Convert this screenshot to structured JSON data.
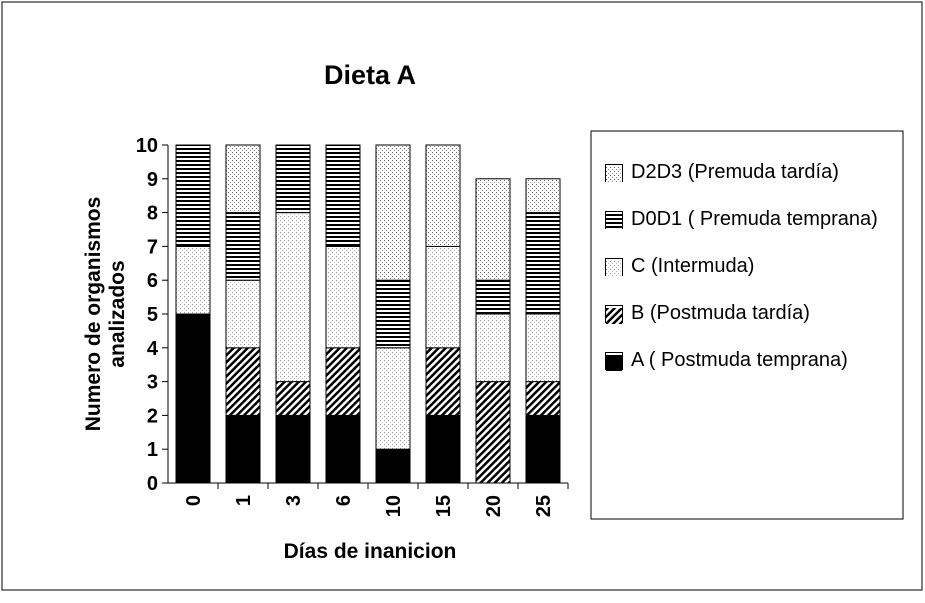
{
  "chart_data": {
    "type": "stacked_bar",
    "title": "Dieta A",
    "xlabel": "Días de inanicion",
    "ylabel": [
      "Numero de organismos",
      "analizados"
    ],
    "categories": [
      "0",
      "1",
      "3",
      "6",
      "10",
      "15",
      "20",
      "25"
    ],
    "series": [
      {
        "name": "A ( Postmuda temprana)",
        "color": "#000000",
        "pattern": "solid",
        "values": [
          5,
          2,
          2,
          2,
          1,
          2,
          0,
          2
        ]
      },
      {
        "name": "B (Postmuda tardía)",
        "color": "#000000",
        "pattern": "hatch",
        "values": [
          0,
          2,
          1,
          2,
          0,
          2,
          3,
          1
        ]
      },
      {
        "name": "C  (Intermuda)",
        "color": "#9a9a9a",
        "pattern": "dots-light",
        "values": [
          2,
          2,
          5,
          3,
          3,
          3,
          2,
          2
        ]
      },
      {
        "name": "D0D1 ( Premuda temprana)",
        "color": "#000000",
        "pattern": "stripes",
        "values": [
          3,
          2,
          2,
          3,
          2,
          0,
          1,
          3
        ]
      },
      {
        "name": "D2D3  (Premuda tardía)",
        "color": "#777777",
        "pattern": "dots",
        "values": [
          0,
          2,
          0,
          0,
          4,
          3,
          3,
          1
        ]
      }
    ],
    "ylim": [
      0,
      10
    ],
    "yticks": [
      0,
      1,
      2,
      3,
      4,
      5,
      6,
      7,
      8,
      9,
      10
    ],
    "legend": "right"
  }
}
